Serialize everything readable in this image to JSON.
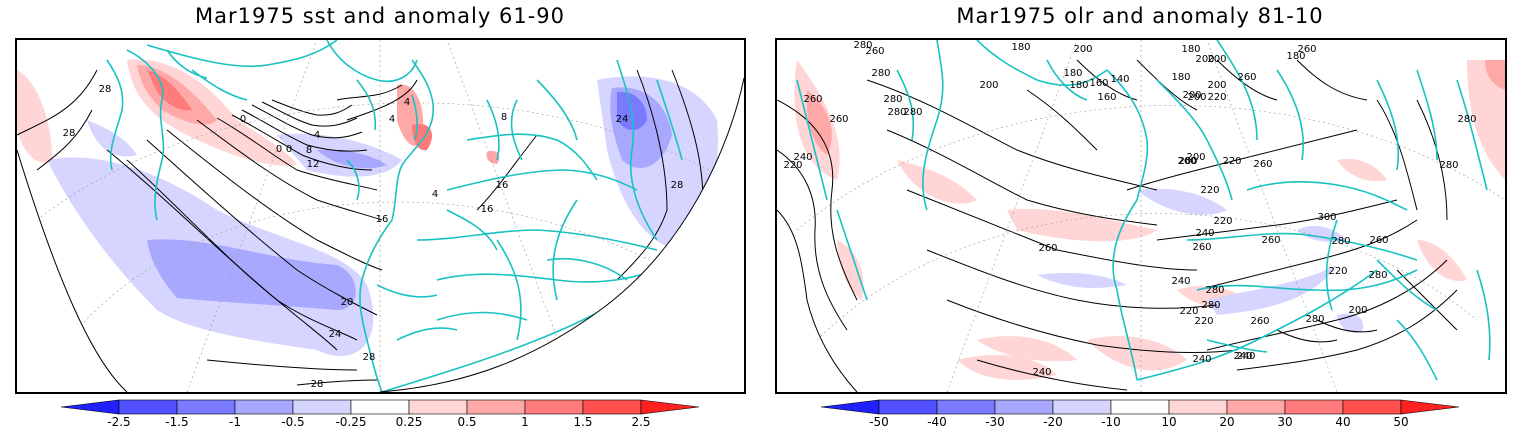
{
  "left": {
    "title": "Mar1975 sst and anomaly 61-90",
    "colorbar": [
      "-2.5",
      "-1.5",
      "-1",
      "-0.5",
      "-0.25",
      "0.25",
      "0.5",
      "1",
      "1.5",
      "2.5"
    ],
    "contour_labels": [
      "28",
      "28",
      "0",
      "4",
      "0",
      "4",
      "0",
      "8",
      "12",
      "16",
      "16",
      "16",
      "4",
      "8",
      "24",
      "28",
      "20",
      "24",
      "28",
      "28",
      "4"
    ]
  },
  "right": {
    "title": "Mar1975 olr and anomaly 81-10",
    "colorbar": [
      "-50",
      "-40",
      "-30",
      "-20",
      "-10",
      "10",
      "20",
      "30",
      "40",
      "50"
    ],
    "contour_labels": [
      "280",
      "260",
      "280",
      "260",
      "280",
      "180",
      "200",
      "200",
      "180",
      "260",
      "180",
      "180",
      "160",
      "140",
      "180",
      "200",
      "200",
      "160",
      "200",
      "200",
      "180",
      "260",
      "280",
      "200",
      "220",
      "260",
      "260",
      "240",
      "220",
      "280",
      "280",
      "220",
      "200",
      "200",
      "220",
      "260",
      "280",
      "220",
      "300",
      "280",
      "240",
      "260",
      "260",
      "280",
      "260",
      "240",
      "280",
      "220",
      "200",
      "260",
      "280",
      "260",
      "240",
      "280",
      "240",
      "220",
      "220",
      "240",
      "240"
    ]
  },
  "colors": {
    "coast": "#19c2c2",
    "neg": [
      "#2020ff",
      "#5050ff",
      "#7a7aff",
      "#a8a8ff",
      "#d5d5ff"
    ],
    "pos": [
      "#ffd5d5",
      "#ffa8a8",
      "#ff7a7a",
      "#ff5050",
      "#ff2020"
    ]
  }
}
